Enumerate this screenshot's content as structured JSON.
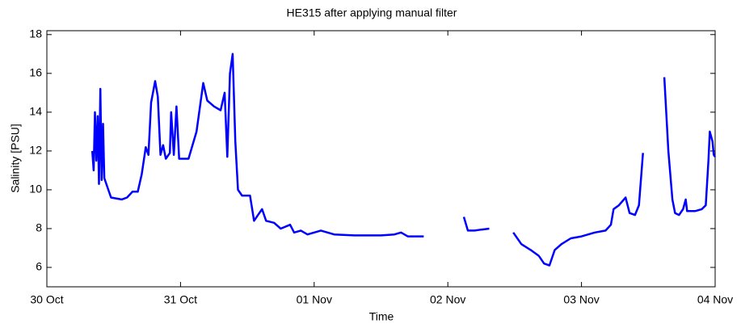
{
  "chart_data": {
    "type": "line",
    "title": "HE315 after applying manual filter",
    "x_label": "Time",
    "y_label": "Salinity [PSU]",
    "xlim": [
      0,
      5
    ],
    "ylim": [
      5,
      18.2
    ],
    "xticks": [
      {
        "value": 0,
        "label": "30 Oct"
      },
      {
        "value": 1,
        "label": "31 Oct"
      },
      {
        "value": 2,
        "label": "01 Nov"
      },
      {
        "value": 3,
        "label": "02 Nov"
      },
      {
        "value": 4,
        "label": "03 Nov"
      },
      {
        "value": 5,
        "label": "04 Nov"
      }
    ],
    "yticks": [
      6,
      8,
      10,
      12,
      14,
      16,
      18
    ],
    "grid": false,
    "series": [
      {
        "name": "Salinity",
        "color": "#0000ff",
        "x": [
          0.34,
          0.35,
          0.36,
          0.37,
          0.38,
          0.39,
          0.4,
          0.41,
          0.42,
          0.43,
          0.45,
          0.48,
          0.56,
          0.6,
          0.64,
          0.68,
          0.71,
          0.74,
          0.76,
          0.78,
          0.81,
          0.83,
          0.85,
          0.87,
          0.89,
          0.92,
          0.93,
          0.95,
          0.97,
          0.99,
          1.06,
          1.12,
          1.17,
          1.2,
          1.25,
          1.3,
          1.33,
          1.35,
          1.37,
          1.39,
          1.41,
          1.43,
          1.46,
          1.52,
          1.55,
          1.58,
          1.61,
          1.64,
          1.7,
          1.75,
          1.82,
          1.85,
          1.9,
          1.95,
          2.0,
          2.05,
          2.15,
          2.3,
          2.5,
          2.6,
          2.65,
          2.7,
          2.82,
          2.9,
          3.12,
          3.15,
          3.2,
          3.25,
          3.31,
          3.4,
          3.49,
          3.55,
          3.62,
          3.68,
          3.72,
          3.76,
          3.8,
          3.85,
          3.92,
          4.0,
          4.1,
          4.18,
          4.22,
          4.24,
          4.28,
          4.33,
          4.36,
          4.4,
          4.43,
          4.46,
          4.55,
          4.62,
          4.65,
          4.68,
          4.7,
          4.73,
          4.76,
          4.78,
          4.79,
          4.85,
          4.9,
          4.93,
          4.95,
          4.96,
          4.98,
          4.99,
          5.0
        ],
        "values": [
          12.0,
          11.0,
          14.0,
          11.5,
          13.8,
          10.3,
          15.2,
          10.5,
          13.4,
          10.6,
          10.2,
          9.6,
          9.5,
          9.6,
          9.9,
          9.9,
          10.8,
          12.2,
          11.8,
          14.5,
          15.6,
          14.8,
          11.8,
          12.3,
          11.6,
          11.9,
          14.0,
          11.8,
          14.3,
          11.6,
          11.6,
          13.0,
          15.5,
          14.6,
          14.3,
          14.1,
          15.0,
          11.7,
          16.0,
          17.0,
          12.5,
          10.0,
          9.7,
          9.7,
          8.4,
          8.7,
          9.0,
          8.4,
          8.3,
          8.0,
          8.2,
          7.8,
          7.9,
          7.7,
          7.8,
          7.9,
          7.7,
          7.65,
          7.65,
          7.7,
          7.8,
          7.6,
          7.6,
          null,
          8.6,
          7.9,
          7.9,
          7.95,
          8.0,
          null,
          7.8,
          7.2,
          6.9,
          6.6,
          6.2,
          6.1,
          6.9,
          7.2,
          7.5,
          7.6,
          7.8,
          7.9,
          8.2,
          9.0,
          9.2,
          9.6,
          8.8,
          8.7,
          9.2,
          11.9,
          null,
          15.8,
          12.0,
          9.5,
          8.8,
          8.7,
          9.0,
          9.5,
          8.9,
          8.9,
          9.0,
          9.2,
          11.5,
          13.0,
          12.5,
          11.8,
          11.7
        ]
      }
    ]
  }
}
